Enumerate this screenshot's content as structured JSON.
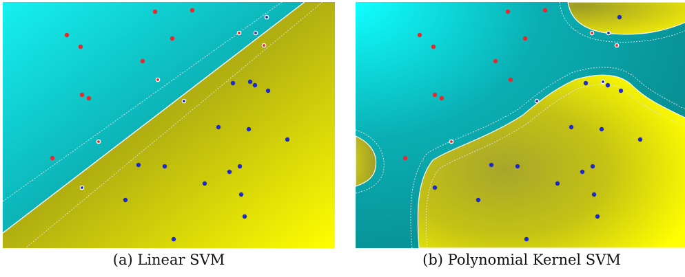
{
  "chart_data": [
    {
      "type": "scatter",
      "caption": "(a) Linear SVM",
      "kernel": "linear",
      "xlim": [
        0,
        482
      ],
      "ylim": [
        0,
        358
      ],
      "colors": {
        "class_red": "#e8282a",
        "class_blue": "#1f2ac4",
        "region_cyan": "#0fc4c4",
        "region_yellow": "#d8d418"
      },
      "series": [
        {
          "class": "red",
          "points": [
            [
              221,
              14
            ],
            [
              275,
              12
            ],
            [
              93,
              48
            ],
            [
              113,
              65
            ],
            [
              246,
              53
            ],
            [
              203,
              86
            ],
            [
              115,
              135
            ],
            [
              125,
              140
            ],
            [
              72,
              227
            ]
          ],
          "support_vectors": [
            [
              343,
              45
            ],
            [
              379,
              63
            ],
            [
              225,
              113
            ],
            [
              139,
              203
            ]
          ]
        },
        {
          "class": "blue",
          "points": [
            [
              334,
              118
            ],
            [
              359,
              116
            ],
            [
              366,
              121
            ],
            [
              385,
              129
            ],
            [
              313,
              182
            ],
            [
              357,
              185
            ],
            [
              413,
              200
            ],
            [
              197,
              237
            ],
            [
              235,
              239
            ],
            [
              329,
              247
            ],
            [
              344,
              239
            ],
            [
              293,
              264
            ],
            [
              346,
              280
            ],
            [
              178,
              288
            ],
            [
              351,
              312
            ],
            [
              248,
              345
            ]
          ],
          "support_vectors": [
            [
              383,
              22
            ],
            [
              367,
              45
            ],
            [
              263,
              144
            ],
            [
              115,
              270
            ]
          ]
        }
      ]
    },
    {
      "type": "scatter",
      "caption": "(b) Polynomial Kernel SVM",
      "kernel": "polynomial",
      "xlim": [
        0,
        482
      ],
      "ylim": [
        0,
        358
      ],
      "colors": {
        "class_red": "#e8282a",
        "class_blue": "#1f2ac4",
        "region_cyan": "#0fc4c4",
        "region_yellow": "#d8d418"
      },
      "series": [
        {
          "class": "red",
          "points": [
            [
              221,
              14
            ],
            [
              275,
              12
            ],
            [
              93,
              48
            ],
            [
              113,
              65
            ],
            [
              246,
              53
            ],
            [
              203,
              86
            ],
            [
              225,
              113
            ],
            [
              115,
              135
            ],
            [
              125,
              140
            ],
            [
              72,
              227
            ]
          ],
          "support_vectors": [
            [
              343,
              45
            ],
            [
              379,
              63
            ],
            [
              139,
              203
            ]
          ]
        },
        {
          "class": "blue",
          "points": [
            [
              383,
              22
            ],
            [
              334,
              118
            ],
            [
              366,
              121
            ],
            [
              385,
              129
            ],
            [
              313,
              182
            ],
            [
              357,
              185
            ],
            [
              413,
              200
            ],
            [
              197,
              237
            ],
            [
              235,
              239
            ],
            [
              329,
              247
            ],
            [
              344,
              239
            ],
            [
              293,
              264
            ],
            [
              346,
              280
            ],
            [
              178,
              288
            ],
            [
              115,
              270
            ],
            [
              351,
              312
            ],
            [
              248,
              345
            ]
          ],
          "support_vectors": [
            [
              367,
              45
            ],
            [
              359,
              116
            ],
            [
              263,
              144
            ]
          ]
        }
      ]
    }
  ]
}
